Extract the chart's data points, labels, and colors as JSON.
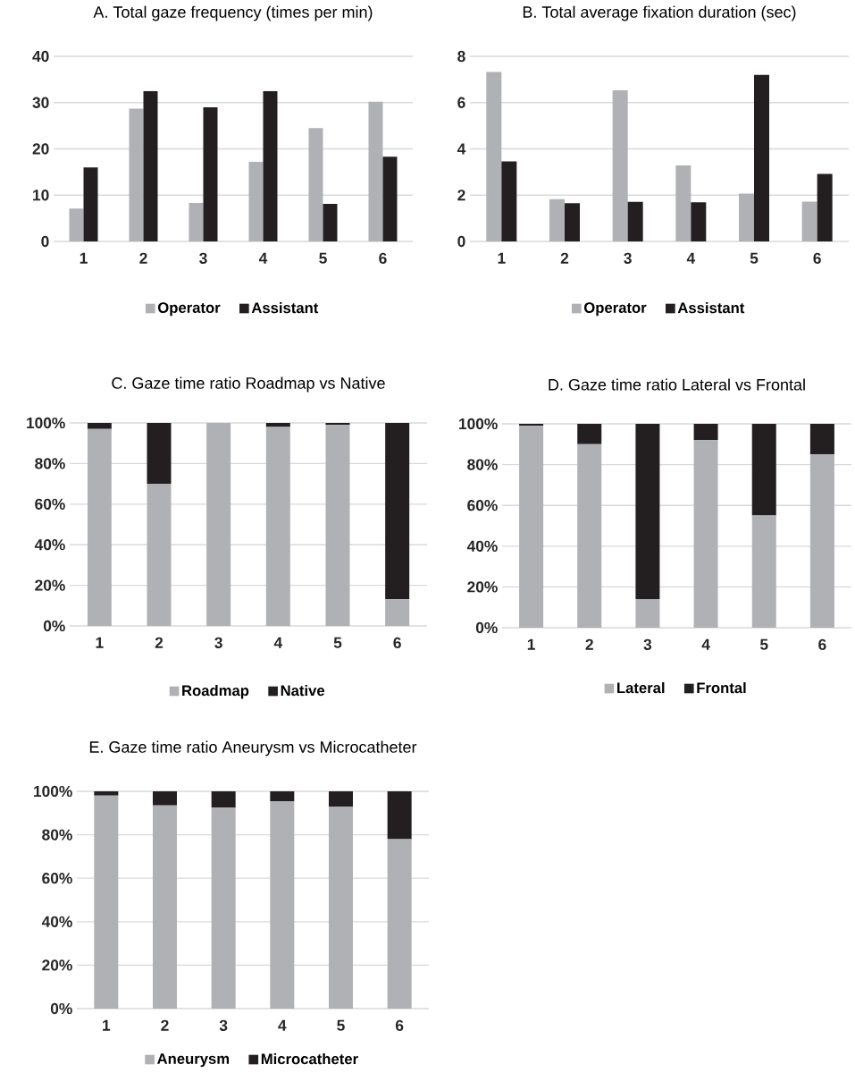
{
  "chart_data": [
    {
      "type": "bar",
      "title": "A. Total gaze frequency (times per min)",
      "categories": [
        "1",
        "2",
        "3",
        "4",
        "5",
        "6"
      ],
      "series": [
        {
          "name": "Operator",
          "color": "#b0b1b5",
          "values": [
            7.1,
            28.7,
            8.3,
            17.2,
            24.5,
            30.2
          ]
        },
        {
          "name": "Assistant",
          "color": "#231f20",
          "values": [
            16.0,
            32.5,
            29.0,
            32.5,
            8.1,
            18.3
          ]
        }
      ],
      "ylim": [
        0,
        40
      ],
      "yticks": [
        0,
        10,
        20,
        30,
        40
      ],
      "grid": "y",
      "legend": "bottom"
    },
    {
      "type": "bar",
      "title": "B. Total average fixation duration (sec)",
      "categories": [
        "1",
        "2",
        "3",
        "4",
        "5",
        "6"
      ],
      "series": [
        {
          "name": "Operator",
          "color": "#b0b1b5",
          "values": [
            7.33,
            1.83,
            6.53,
            3.29,
            2.07,
            1.72
          ]
        },
        {
          "name": "Assistant",
          "color": "#231f20",
          "values": [
            3.46,
            1.65,
            1.71,
            1.69,
            7.2,
            2.92
          ]
        }
      ],
      "ylim": [
        0,
        8
      ],
      "yticks": [
        0,
        2,
        4,
        6,
        8
      ],
      "grid": "y",
      "legend": "bottom"
    },
    {
      "type": "bar",
      "stacked": true,
      "title": "C. Gaze time ratio Roadmap vs Native",
      "categories": [
        "1",
        "2",
        "3",
        "4",
        "5",
        "6"
      ],
      "series": [
        {
          "name": "Roadmap",
          "color": "#b0b1b5",
          "values": [
            97,
            70,
            100,
            98,
            99,
            13
          ]
        },
        {
          "name": "Native",
          "color": "#231f20",
          "values": [
            3,
            30,
            0,
            2,
            1,
            87
          ]
        }
      ],
      "ylim": [
        0,
        100
      ],
      "yticks": [
        {
          "value": 0,
          "label": "0%"
        },
        {
          "value": 20,
          "label": "20%"
        },
        {
          "value": 40,
          "label": "40%"
        },
        {
          "value": 60,
          "label": "60%"
        },
        {
          "value": 80,
          "label": "80%"
        },
        {
          "value": 100,
          "label": "100%"
        }
      ],
      "grid": "y",
      "legend": "bottom"
    },
    {
      "type": "bar",
      "stacked": true,
      "title": "D. Gaze time ratio Lateral vs Frontal",
      "categories": [
        "1",
        "2",
        "3",
        "4",
        "5",
        "6"
      ],
      "series": [
        {
          "name": "Lateral",
          "color": "#b0b1b5",
          "values": [
            99,
            90,
            14,
            92,
            55,
            85
          ]
        },
        {
          "name": "Frontal",
          "color": "#231f20",
          "values": [
            1,
            10,
            86,
            8,
            45,
            15
          ]
        }
      ],
      "ylim": [
        0,
        100
      ],
      "yticks": [
        {
          "value": 0,
          "label": "0%"
        },
        {
          "value": 20,
          "label": "20%"
        },
        {
          "value": 40,
          "label": "40%"
        },
        {
          "value": 60,
          "label": "60%"
        },
        {
          "value": 80,
          "label": "80%"
        },
        {
          "value": 100,
          "label": "100%"
        }
      ],
      "grid": "y",
      "legend": "bottom"
    },
    {
      "type": "bar",
      "stacked": true,
      "title": "E. Gaze time ratio Aneurysm vs Microcatheter",
      "categories": [
        "1",
        "2",
        "3",
        "4",
        "5",
        "6"
      ],
      "series": [
        {
          "name": "Aneurysm",
          "color": "#b0b1b5",
          "values": [
            98,
            93.5,
            92.5,
            95.5,
            93,
            78
          ]
        },
        {
          "name": "Microcatheter",
          "color": "#231f20",
          "values": [
            2,
            6.5,
            7.5,
            4.5,
            7,
            22
          ]
        }
      ],
      "ylim": [
        0,
        100
      ],
      "yticks": [
        {
          "value": 0,
          "label": "0%"
        },
        {
          "value": 20,
          "label": "20%"
        },
        {
          "value": 40,
          "label": "40%"
        },
        {
          "value": 60,
          "label": "60%"
        },
        {
          "value": 80,
          "label": "80%"
        },
        {
          "value": 100,
          "label": "100%"
        }
      ],
      "grid": "y",
      "legend": "bottom"
    }
  ]
}
